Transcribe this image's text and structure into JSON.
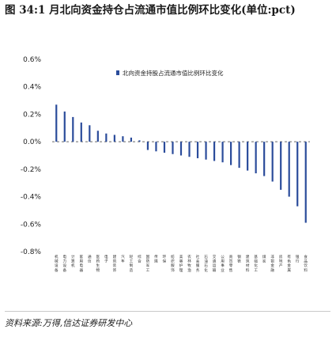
{
  "header": {
    "title": "图 34:1 月北向资金持仓占流通市值比例环比变化(单位:pct)"
  },
  "footer": {
    "source": "资料来源:万得,信达证券研发中心"
  },
  "chart_data": {
    "type": "bar",
    "title": "",
    "xlabel": "",
    "ylabel": "",
    "ylim": [
      -0.8,
      0.6
    ],
    "yticks": [
      "0.6%",
      "0.4%",
      "0.2%",
      "0.0%",
      "-0.2%",
      "-0.4%",
      "-0.6%",
      "-0.8%"
    ],
    "ytick_values": [
      0.6,
      0.4,
      0.2,
      0.0,
      -0.2,
      -0.4,
      -0.6,
      -0.8
    ],
    "legend": {
      "position": "top-right",
      "label": "北向资金持股占流通市值比例环比变化"
    },
    "series_color": "#2b4c9b",
    "categories": [
      "机械设备",
      "电力设备",
      "计算机",
      "家用电器",
      "通信",
      "医药生物",
      "电子",
      "建筑装饰",
      "汽车",
      "轻工制造",
      "综合",
      "国防军工",
      "传媒",
      "环保",
      "纺织服饰",
      "美容护理",
      "农林牧渔",
      "社会服务",
      "石油石化",
      "交通运输",
      "公用事业",
      "商贸零售",
      "钢铁",
      "建筑材料",
      "基础化工",
      "煤炭",
      "非银金融",
      "房地产",
      "有色金属",
      "银行",
      "食品饮料"
    ],
    "values": [
      0.27,
      0.22,
      0.18,
      0.14,
      0.12,
      0.08,
      0.06,
      0.05,
      0.04,
      0.03,
      0.01,
      -0.06,
      -0.07,
      -0.08,
      -0.09,
      -0.1,
      -0.11,
      -0.12,
      -0.13,
      -0.14,
      -0.15,
      -0.17,
      -0.19,
      -0.21,
      -0.23,
      -0.25,
      -0.29,
      -0.35,
      -0.4,
      -0.47,
      -0.59
    ]
  }
}
